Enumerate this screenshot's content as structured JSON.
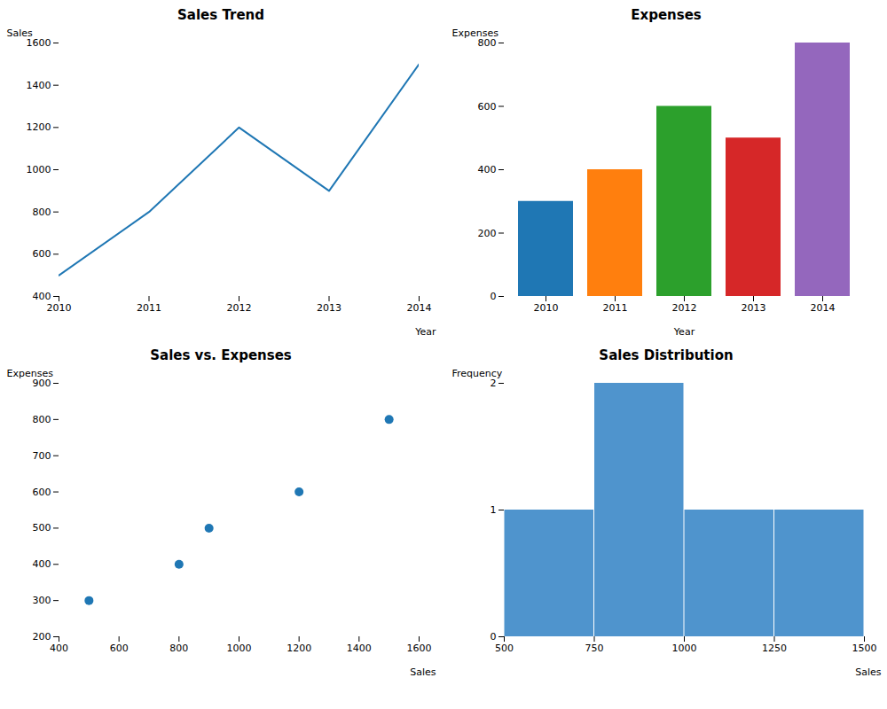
{
  "chart_data": [
    {
      "type": "line",
      "title": "Sales Trend",
      "xlabel": "Year",
      "ylabel": "Sales",
      "x": [
        2010,
        2011,
        2012,
        2013,
        2014
      ],
      "values": [
        500,
        800,
        1200,
        900,
        1500
      ],
      "color": "#1f77b4",
      "xlim": [
        2010,
        2014
      ],
      "xticks": [
        2010,
        2011,
        2012,
        2013,
        2014
      ],
      "ylim": [
        400,
        1600
      ],
      "yticks": [
        400,
        600,
        800,
        1000,
        1200,
        1400,
        1600
      ],
      "grid": false
    },
    {
      "type": "bar",
      "title": "Expenses",
      "xlabel": "Year",
      "ylabel": "Expenses",
      "categories": [
        "2010",
        "2011",
        "2012",
        "2013",
        "2014"
      ],
      "values": [
        300,
        400,
        600,
        500,
        800
      ],
      "colors": [
        "#1f77b4",
        "#ff7f0e",
        "#2ca02c",
        "#d62728",
        "#9467bd"
      ],
      "ylim": [
        0,
        800
      ],
      "yticks": [
        0,
        200,
        400,
        600,
        800
      ],
      "grid": false
    },
    {
      "type": "scatter",
      "title": "Sales vs. Expenses",
      "xlabel": "Sales",
      "ylabel": "Expenses",
      "x": [
        500,
        800,
        1200,
        900,
        1500
      ],
      "values": [
        300,
        400,
        600,
        500,
        800
      ],
      "color": "#1f77b4",
      "xlim": [
        400,
        1600
      ],
      "xticks": [
        400,
        600,
        800,
        1000,
        1200,
        1400,
        1600
      ],
      "ylim": [
        200,
        900
      ],
      "yticks": [
        200,
        300,
        400,
        500,
        600,
        700,
        800,
        900
      ],
      "grid": false
    },
    {
      "type": "histogram",
      "title": "Sales Distribution",
      "xlabel": "Sales",
      "ylabel": "Frequency",
      "bins": [
        500,
        750,
        1000,
        1250,
        1500
      ],
      "values": [
        1,
        2,
        1,
        1
      ],
      "color": "#4f94cd",
      "xlim": [
        500,
        1500
      ],
      "xticks": [
        500,
        750,
        1000,
        1250,
        1500
      ],
      "ylim": [
        0,
        2
      ],
      "yticks": [
        0,
        1,
        2
      ],
      "grid": false
    }
  ]
}
